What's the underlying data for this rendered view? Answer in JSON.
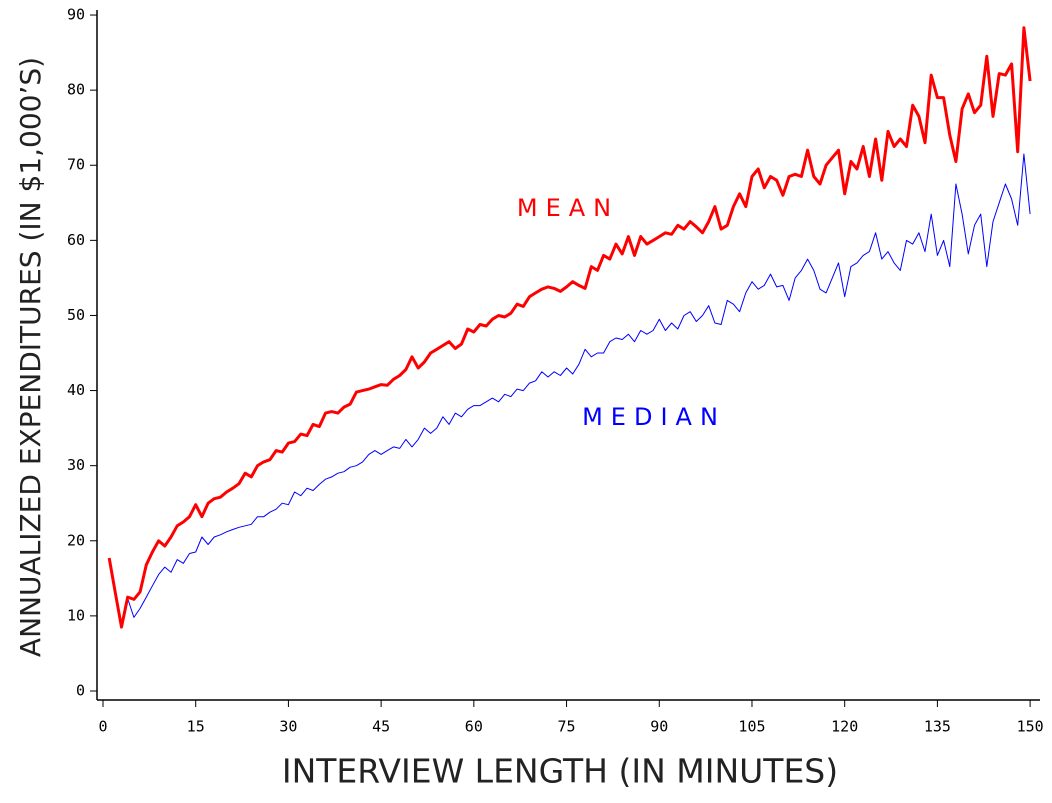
{
  "chart_data": {
    "type": "line",
    "y_label": "ANNUALIZED EXPENDITURES (IN $1,000’S)",
    "x_label": "INTERVIEW LENGTH (IN MINUTES)",
    "annotations": [
      "MEAN",
      "MEDIAN"
    ],
    "xlim": [
      -0.97,
      151.6
    ],
    "ylim": [
      -1.2,
      90.67
    ],
    "xticks": [
      0,
      15,
      30,
      45,
      60,
      75,
      90,
      105,
      120,
      135,
      150
    ],
    "yticks": [
      0,
      10,
      20,
      30,
      40,
      50,
      60,
      70,
      80,
      90
    ],
    "x": [
      1,
      2,
      3,
      4,
      5,
      6,
      7,
      8,
      9,
      10,
      11,
      12,
      13,
      14,
      15,
      16,
      17,
      18,
      19,
      20,
      21,
      22,
      23,
      24,
      25,
      26,
      27,
      28,
      29,
      30,
      31,
      32,
      33,
      34,
      35,
      36,
      37,
      38,
      39,
      40,
      41,
      42,
      43,
      44,
      45,
      46,
      47,
      48,
      49,
      50,
      51,
      52,
      53,
      54,
      55,
      56,
      57,
      58,
      59,
      60,
      61,
      62,
      63,
      64,
      65,
      66,
      67,
      68,
      69,
      70,
      71,
      72,
      73,
      74,
      75,
      76,
      77,
      78,
      79,
      80,
      81,
      82,
      83,
      84,
      85,
      86,
      87,
      88,
      89,
      90,
      91,
      92,
      93,
      94,
      95,
      96,
      97,
      98,
      99,
      100,
      101,
      102,
      103,
      104,
      105,
      106,
      107,
      108,
      109,
      110,
      111,
      112,
      113,
      114,
      115,
      116,
      117,
      118,
      119,
      120,
      121,
      122,
      123,
      124,
      125,
      126,
      127,
      128,
      129,
      130,
      131,
      132,
      133,
      134,
      135,
      136,
      137,
      138,
      139,
      140,
      141,
      142,
      143,
      144,
      145,
      146,
      147,
      148,
      149,
      150
    ],
    "series": [
      {
        "name": "MEAN",
        "color": "#ff0000",
        "width": 3,
        "values": [
          17.7,
          13,
          8.5,
          12.5,
          12.2,
          13.2,
          16.8,
          18.5,
          20,
          19.3,
          20.5,
          22,
          22.5,
          23.2,
          24.8,
          23.2,
          25,
          25.6,
          25.8,
          26.5,
          27,
          27.6,
          29,
          28.5,
          30,
          30.5,
          30.8,
          32,
          31.8,
          33,
          33.2,
          34.2,
          34,
          35.5,
          35.2,
          37,
          37.2,
          37,
          37.8,
          38.2,
          39.8,
          40,
          40.2,
          40.5,
          40.8,
          40.7,
          41.5,
          42,
          42.8,
          44.5,
          43,
          43.8,
          45,
          45.5,
          46,
          46.5,
          45.6,
          46.2,
          48.2,
          47.8,
          48.8,
          48.6,
          49.5,
          50,
          49.8,
          50.3,
          51.5,
          51.2,
          52.5,
          53,
          53.5,
          53.8,
          53.6,
          53.2,
          53.8,
          54.5,
          54,
          53.6,
          56.5,
          56,
          58,
          57.5,
          59.5,
          58.2,
          60.5,
          58,
          60.5,
          59.5,
          60,
          60.5,
          61,
          60.8,
          62,
          61.5,
          62.5,
          61.8,
          61,
          62.5,
          64.5,
          61.5,
          62,
          64.5,
          66.2,
          64.5,
          68.5,
          69.5,
          67,
          68.5,
          68,
          66,
          68.5,
          68.8,
          68.5,
          72,
          68.5,
          67.5,
          70,
          71,
          72,
          66.2,
          70.5,
          69.5,
          72.5,
          68.5,
          73.5,
          68,
          74.5,
          72.5,
          73.5,
          72.5,
          78,
          76.5,
          73,
          82,
          79,
          79,
          74,
          70.5,
          77.5,
          79.5,
          77,
          78,
          84.5,
          76.5,
          82.2,
          82,
          83.5,
          71.8,
          88.3,
          81.2
        ]
      },
      {
        "name": "MEDIAN",
        "color": "#0000ff",
        "width": 1,
        "values": [
          17.7,
          13,
          8.5,
          12.3,
          9.8,
          11,
          12.5,
          14,
          15.5,
          16.5,
          15.8,
          17.5,
          17,
          18.3,
          18.5,
          20.5,
          19.5,
          20.5,
          20.8,
          21.2,
          21.5,
          21.8,
          22,
          22.2,
          23.2,
          23.2,
          23.8,
          24.2,
          25,
          24.8,
          26.5,
          26,
          27,
          26.7,
          27.5,
          28.2,
          28.5,
          29,
          29.2,
          29.8,
          30,
          30.5,
          31.5,
          32,
          31.5,
          32,
          32.5,
          32.3,
          33.5,
          32.5,
          33.5,
          35,
          34.3,
          35,
          36.5,
          35.5,
          37,
          36.5,
          37.5,
          38,
          38,
          38.5,
          39,
          38.5,
          39.5,
          39.2,
          40.2,
          40,
          41,
          41.3,
          42.5,
          41.8,
          42.5,
          42,
          43,
          42.2,
          43.5,
          45.5,
          44.5,
          45,
          45,
          46.5,
          47,
          46.8,
          47.5,
          46.5,
          48,
          47.5,
          48,
          49.5,
          48,
          49,
          48.2,
          50,
          50.5,
          49.2,
          50,
          51.3,
          49,
          48.8,
          52,
          51.5,
          50.5,
          53,
          54.5,
          53.5,
          54,
          55.5,
          53.8,
          54,
          52,
          55,
          56,
          57.5,
          56,
          53.5,
          53,
          55,
          57,
          52.5,
          56.5,
          57,
          58,
          58.5,
          61,
          57.5,
          58.5,
          57,
          56,
          60,
          59.5,
          61,
          58.5,
          63.5,
          58,
          60,
          56.5,
          67.5,
          63.5,
          58.2,
          62,
          63.5,
          56.5,
          62.5,
          65,
          67.5,
          65.5,
          62,
          71.5,
          63.5
        ]
      }
    ]
  }
}
